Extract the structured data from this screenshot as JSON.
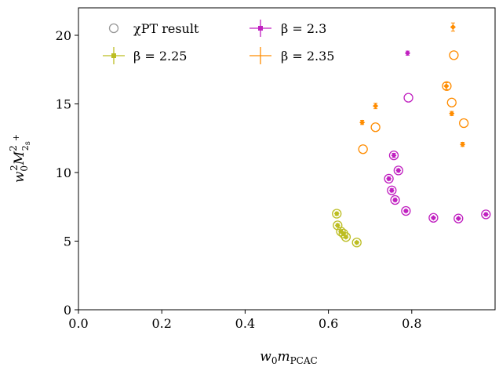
{
  "chart_data": {
    "type": "scatter",
    "xlabel": "w0mPCAC",
    "ylabel": "w0²M²2s+",
    "xlim": [
      0,
      1.0
    ],
    "ylim": [
      0,
      22
    ],
    "x_ticks": [
      {
        "value": 0.0,
        "label": "0.0"
      },
      {
        "value": 0.2,
        "label": "0.2"
      },
      {
        "value": 0.4,
        "label": "0.4"
      },
      {
        "value": 0.6,
        "label": "0.6"
      },
      {
        "value": 0.8,
        "label": "0.8"
      }
    ],
    "y_ticks": [
      {
        "value": 0,
        "label": "0"
      },
      {
        "value": 5,
        "label": "5"
      },
      {
        "value": 10,
        "label": "10"
      },
      {
        "value": 15,
        "label": "15"
      },
      {
        "value": 20,
        "label": "20"
      }
    ],
    "grid": false,
    "legend_position": "top-left",
    "legend_order": [
      "chipt",
      "b225",
      "b23",
      "b235"
    ],
    "legend_colors": {
      "chipt": "#999999",
      "b225": "#bcbd22",
      "b23": "#c020c0",
      "b235": "#ff8c00"
    },
    "series": [
      {
        "key": "b225",
        "name": "β = 2.25",
        "color": "#bcbd22",
        "x": [
          0.62,
          0.622,
          0.63,
          0.636,
          0.642,
          0.668
        ],
        "y": [
          7.0,
          6.15,
          5.7,
          5.55,
          5.3,
          4.9
        ],
        "yerr": [
          0.12,
          0.12,
          0.1,
          0.1,
          0.1,
          0.1
        ],
        "xerr": [
          0.004,
          0.004,
          0.004,
          0.004,
          0.004,
          0.004
        ]
      },
      {
        "key": "b23",
        "name": "β = 2.3",
        "color": "#c020c0",
        "x": [
          0.745,
          0.752,
          0.757,
          0.76,
          0.768,
          0.786,
          0.79,
          0.852,
          0.912,
          0.978
        ],
        "y": [
          9.55,
          8.7,
          11.25,
          8.0,
          10.15,
          7.2,
          18.7,
          6.7,
          6.65,
          6.95
        ],
        "yerr": [
          0.12,
          0.12,
          0.15,
          0.12,
          0.12,
          0.1,
          0.15,
          0.08,
          0.08,
          0.1
        ],
        "xerr": [
          0.004,
          0.004,
          0.004,
          0.004,
          0.004,
          0.004,
          0.004,
          0.004,
          0.004,
          0.004
        ]
      },
      {
        "key": "b235",
        "name": "β = 2.35",
        "color": "#ff8c00",
        "x": [
          0.681,
          0.713,
          0.883,
          0.896,
          0.899,
          0.922
        ],
        "y": [
          13.65,
          14.85,
          16.3,
          14.3,
          20.6,
          12.05
        ],
        "yerr": [
          0.15,
          0.2,
          0.25,
          0.15,
          0.3,
          0.15
        ],
        "xerr": [
          0.004,
          0.004,
          0.006,
          0.004,
          0.006,
          0.004
        ]
      },
      {
        "key": "chipt",
        "name": "χPT result",
        "marker": "open-circle",
        "color_by_beta": true,
        "points": [
          {
            "x": 0.62,
            "y": 7.0,
            "color": "#bcbd22"
          },
          {
            "x": 0.622,
            "y": 6.15,
            "color": "#bcbd22"
          },
          {
            "x": 0.63,
            "y": 5.7,
            "color": "#bcbd22"
          },
          {
            "x": 0.636,
            "y": 5.55,
            "color": "#bcbd22"
          },
          {
            "x": 0.642,
            "y": 5.3,
            "color": "#bcbd22"
          },
          {
            "x": 0.668,
            "y": 4.9,
            "color": "#bcbd22"
          },
          {
            "x": 0.745,
            "y": 9.55,
            "color": "#c020c0"
          },
          {
            "x": 0.752,
            "y": 8.7,
            "color": "#c020c0"
          },
          {
            "x": 0.757,
            "y": 11.25,
            "color": "#c020c0"
          },
          {
            "x": 0.76,
            "y": 8.0,
            "color": "#c020c0"
          },
          {
            "x": 0.768,
            "y": 10.15,
            "color": "#c020c0"
          },
          {
            "x": 0.786,
            "y": 7.2,
            "color": "#c020c0"
          },
          {
            "x": 0.792,
            "y": 15.45,
            "color": "#c020c0"
          },
          {
            "x": 0.852,
            "y": 6.7,
            "color": "#c020c0"
          },
          {
            "x": 0.912,
            "y": 6.65,
            "color": "#c020c0"
          },
          {
            "x": 0.978,
            "y": 6.95,
            "color": "#c020c0"
          },
          {
            "x": 0.683,
            "y": 11.7,
            "color": "#ff8c00"
          },
          {
            "x": 0.713,
            "y": 13.3,
            "color": "#ff8c00"
          },
          {
            "x": 0.884,
            "y": 16.3,
            "color": "#ff8c00"
          },
          {
            "x": 0.896,
            "y": 15.1,
            "color": "#ff8c00"
          },
          {
            "x": 0.901,
            "y": 18.55,
            "color": "#ff8c00"
          },
          {
            "x": 0.925,
            "y": 13.6,
            "color": "#ff8c00"
          }
        ]
      }
    ]
  }
}
